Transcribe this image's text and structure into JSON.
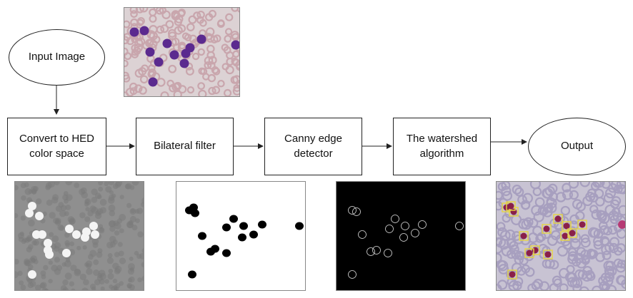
{
  "nodes": {
    "input": "Input Image",
    "hed": "Convert to HED color space",
    "bilateral": "Bilateral filter",
    "canny": "Canny edge detector",
    "watershed": "The watershed algorithm",
    "output": "Output"
  },
  "images": [
    {
      "name": "input-blood-smear-image"
    },
    {
      "name": "hed-channel-image"
    },
    {
      "name": "bilateral-filter-binary-image"
    },
    {
      "name": "canny-edge-image"
    },
    {
      "name": "watershed-output-image"
    }
  ],
  "colors": {
    "line": "#222222",
    "rbc": "#c9a6ad",
    "wbc": "#5b2a8f",
    "smear_bg": "#dcd2d4",
    "gray_bg": "#8f8f8f",
    "box": "#e8d640"
  }
}
